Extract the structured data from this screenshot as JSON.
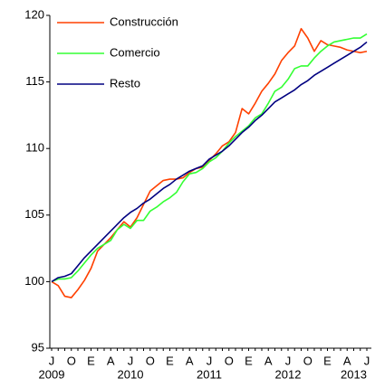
{
  "chart_data": {
    "type": "line",
    "categories": [
      "J",
      null,
      null,
      "O",
      null,
      null,
      "E",
      null,
      null,
      "A",
      null,
      null,
      "J",
      null,
      null,
      "O",
      null,
      null,
      "E",
      null,
      null,
      "A",
      null,
      null,
      "J",
      null,
      null,
      "O",
      null,
      null,
      "E",
      null,
      null,
      "A",
      null,
      null,
      "J",
      null,
      null,
      "O",
      null,
      null,
      "E",
      null,
      null,
      "A",
      null,
      null,
      "J"
    ],
    "year_labels": [
      "2009",
      null,
      null,
      null,
      null,
      null,
      null,
      null,
      null,
      null,
      null,
      null,
      "2010",
      null,
      null,
      null,
      null,
      null,
      null,
      null,
      null,
      null,
      null,
      null,
      "2011",
      null,
      null,
      null,
      null,
      null,
      null,
      null,
      null,
      null,
      null,
      null,
      "2012",
      null,
      null,
      null,
      null,
      null,
      null,
      null,
      null,
      null,
      "2013",
      null,
      null
    ],
    "series": [
      {
        "name": "Construcción",
        "color": "#ff4000",
        "values": [
          100.0,
          99.7,
          98.9,
          98.8,
          99.4,
          100.1,
          101.0,
          102.3,
          102.8,
          103.3,
          103.9,
          104.5,
          104.1,
          104.8,
          105.8,
          106.8,
          107.2,
          107.6,
          107.7,
          107.7,
          107.8,
          108.2,
          108.5,
          108.6,
          109.1,
          109.6,
          110.2,
          110.5,
          111.2,
          113.0,
          112.6,
          113.4,
          114.3,
          114.9,
          115.6,
          116.6,
          117.2,
          117.7,
          119.0,
          118.3,
          117.3,
          118.1,
          117.8,
          117.7,
          117.6,
          117.4,
          117.3,
          117.2,
          117.3
        ]
      },
      {
        "name": "Comercio",
        "color": "#33ff33",
        "values": [
          100.0,
          100.2,
          100.2,
          100.3,
          100.8,
          101.4,
          102.0,
          102.5,
          102.8,
          103.1,
          103.9,
          104.3,
          104.0,
          104.6,
          104.6,
          105.3,
          105.6,
          106.0,
          106.3,
          106.7,
          107.5,
          108.1,
          108.2,
          108.5,
          109.0,
          109.3,
          109.8,
          110.4,
          110.9,
          111.3,
          111.7,
          112.3,
          112.6,
          113.4,
          114.3,
          114.6,
          115.2,
          116.0,
          116.2,
          116.2,
          116.8,
          117.3,
          117.7,
          118.0,
          118.1,
          118.2,
          118.3,
          118.3,
          118.6
        ]
      },
      {
        "name": "Resto",
        "color": "#000080",
        "values": [
          100.0,
          100.3,
          100.4,
          100.6,
          101.2,
          101.8,
          102.3,
          102.8,
          103.3,
          103.8,
          104.3,
          104.8,
          105.2,
          105.5,
          105.9,
          106.2,
          106.6,
          107.0,
          107.3,
          107.7,
          108.0,
          108.3,
          108.5,
          108.7,
          109.2,
          109.5,
          109.8,
          110.2,
          110.7,
          111.2,
          111.6,
          112.1,
          112.5,
          113.0,
          113.5,
          113.8,
          114.1,
          114.4,
          114.8,
          115.1,
          115.5,
          115.8,
          116.1,
          116.4,
          116.7,
          117.0,
          117.3,
          117.6,
          118.0
        ]
      }
    ],
    "ylim": [
      95,
      120
    ],
    "yticks": [
      95,
      100,
      105,
      110,
      115,
      120
    ],
    "grid": false,
    "legend": "top-left"
  }
}
